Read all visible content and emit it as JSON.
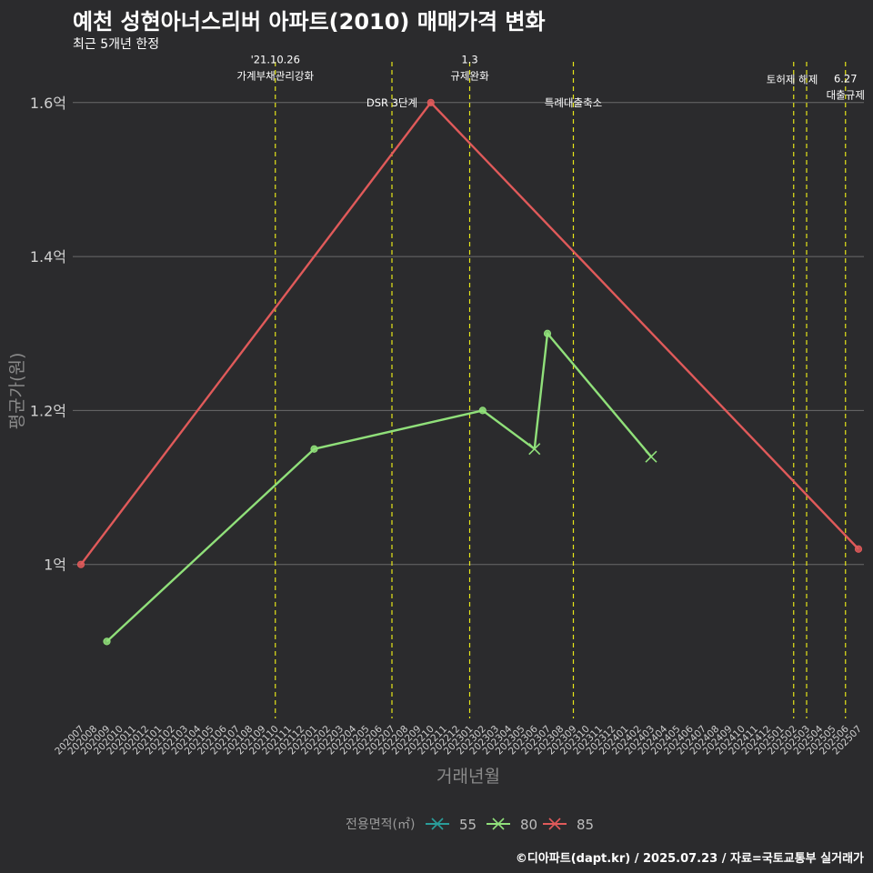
{
  "header": {
    "title": "예천 성현아너스리버 아파트(2010) 매매가격 변화",
    "subtitle": "최근 5개년 한정"
  },
  "caption": "©디아파트(dapt.kr) / 2025.07.23 / 자료=국토교통부 실거래가",
  "colors": {
    "background": "#2b2b2d",
    "grid": "#6b6b6b",
    "event_line": "#e6e619",
    "axis_text": "#d0d0d0",
    "axis_title": "#8a8a8a"
  },
  "chart_data": {
    "type": "line",
    "xlabel": "거래년월",
    "ylabel": "평균가(원)",
    "ylim": [
      0.8,
      1.66
    ],
    "yticks": [
      {
        "value": 1.0,
        "label": "1억"
      },
      {
        "value": 1.2,
        "label": "1.2억"
      },
      {
        "value": 1.4,
        "label": "1.4억"
      },
      {
        "value": 1.6,
        "label": "1.6억"
      }
    ],
    "x_categories": [
      "202007",
      "202008",
      "202009",
      "202010",
      "202011",
      "202012",
      "202101",
      "202102",
      "202103",
      "202104",
      "202105",
      "202106",
      "202107",
      "202108",
      "202109",
      "202110",
      "202111",
      "202112",
      "202201",
      "202202",
      "202203",
      "202204",
      "202205",
      "202206",
      "202207",
      "202208",
      "202209",
      "202210",
      "202211",
      "202212",
      "202301",
      "202302",
      "202303",
      "202304",
      "202305",
      "202306",
      "202307",
      "202308",
      "202309",
      "202310",
      "202311",
      "202312",
      "202401",
      "202402",
      "202403",
      "202404",
      "202405",
      "202406",
      "202407",
      "202408",
      "202409",
      "202410",
      "202411",
      "202412",
      "202501",
      "202502",
      "202503",
      "202504",
      "202505",
      "202506",
      "202507"
    ],
    "legend_title": "전용면적(㎡)",
    "legend_position": "bottom",
    "series": [
      {
        "name": "55",
        "color": "#2a9d9a",
        "points": []
      },
      {
        "name": "80",
        "color": "#90e07a",
        "points": [
          {
            "x": "202009",
            "y": 0.9,
            "marker": "dot"
          },
          {
            "x": "202201",
            "y": 1.15,
            "marker": "dot"
          },
          {
            "x": "202302",
            "y": 1.2,
            "marker": "dot"
          },
          {
            "x": "202306",
            "y": 1.15,
            "marker": "x"
          },
          {
            "x": "202307",
            "y": 1.3,
            "marker": "dot"
          },
          {
            "x": "202403",
            "y": 1.14,
            "marker": "x"
          }
        ]
      },
      {
        "name": "85",
        "color": "#e05a5a",
        "points": [
          {
            "x": "202007",
            "y": 1.0,
            "marker": "dot"
          },
          {
            "x": "202210",
            "y": 1.6,
            "marker": "dot"
          },
          {
            "x": "202507",
            "y": 1.02,
            "marker": "dot"
          }
        ]
      }
    ],
    "events": [
      {
        "x": "202110",
        "label": "'21.10.26\n가계부채관리강화",
        "label_y": 1.63,
        "align": "middle"
      },
      {
        "x": "202207",
        "label": "DSR 3단계",
        "label_y": 1.595,
        "align": "middle"
      },
      {
        "x": "202301",
        "label": "1.3\n규제완화",
        "label_y": 1.63,
        "align": "middle"
      },
      {
        "x": "202309",
        "label": "특례대출축소",
        "label_y": 1.595,
        "align": "middle"
      },
      {
        "x": "202502",
        "label": "토허제 해제",
        "label_y": 1.625,
        "align": "start"
      },
      {
        "x": "202503",
        "label": "",
        "label_y": 1.625,
        "align": "middle"
      },
      {
        "x": "202506",
        "label": "6.27\n대출규제",
        "label_y": 1.605,
        "align": "middle"
      }
    ]
  }
}
